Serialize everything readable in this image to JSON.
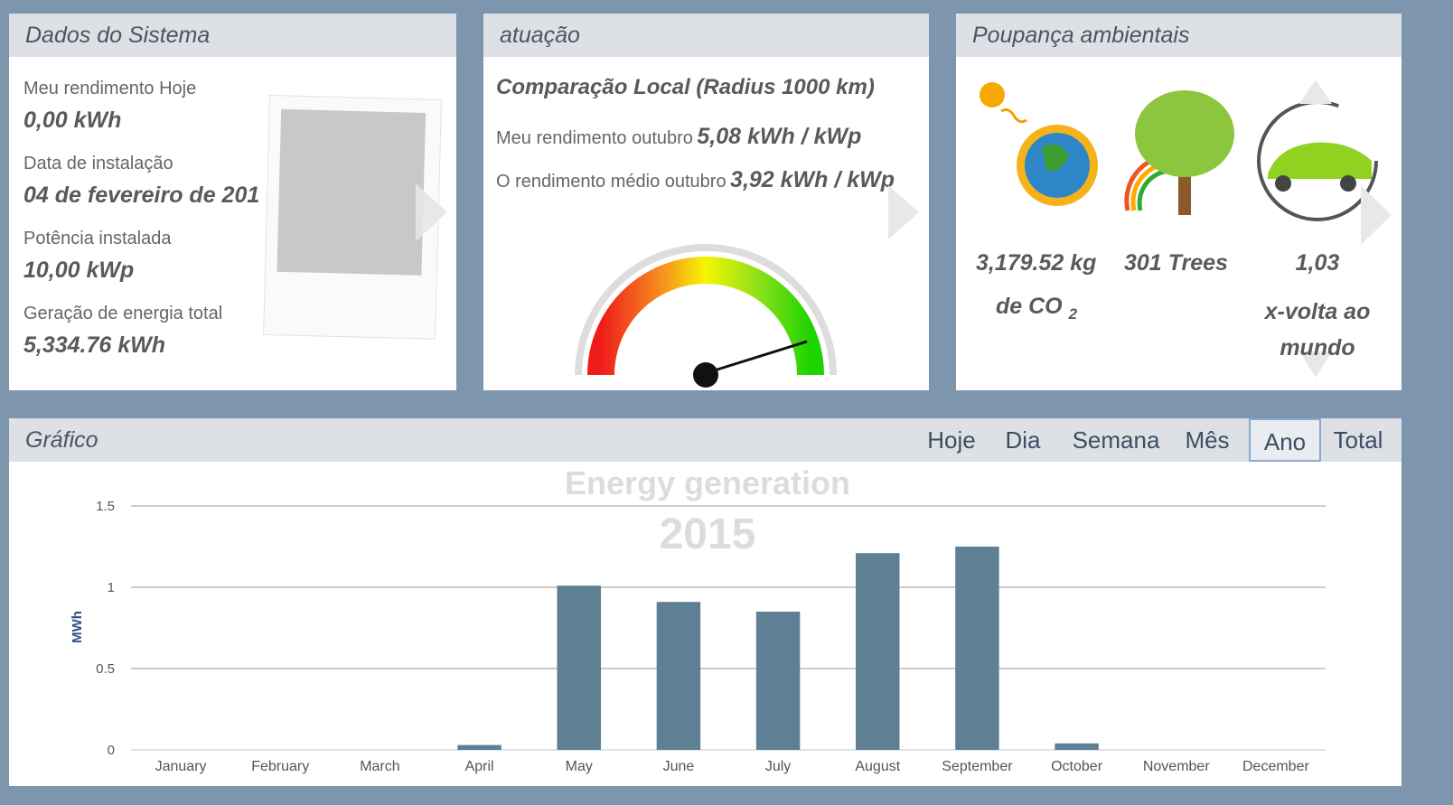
{
  "system": {
    "title": "Dados do Sistema",
    "items": [
      {
        "label": "Meu rendimento Hoje",
        "value": "0,00 kWh"
      },
      {
        "label": "Data de instalação",
        "value": "04 de fevereiro de 201"
      },
      {
        "label": "Potência instalada",
        "value": "10,00 kWp"
      },
      {
        "label": "Geração de energia total",
        "value": "5,334.76 kWh"
      }
    ]
  },
  "performance": {
    "title": "atuação",
    "subtitle": "Comparação Local (Radius 1000 km)",
    "rows": [
      {
        "label": "Meu rendimento outubro",
        "value": "5,08 kWh / kWp"
      },
      {
        "label": "O rendimento médio outubro",
        "value": "3,92 kWh / kWp"
      }
    ]
  },
  "savings": {
    "title": "Poupança ambientais",
    "items": [
      {
        "value": "3,179.52 kg",
        "unit": "de CO",
        "sub": "2"
      },
      {
        "value": "301 Trees"
      },
      {
        "value": "1,03",
        "unit": "x-volta ao mundo"
      }
    ]
  },
  "graph": {
    "title": "Gráfico",
    "tabs": [
      "Hoje",
      "Dia",
      "Semana",
      "Mês",
      "Ano",
      "Total"
    ],
    "active_tab": 4
  },
  "chart_data": {
    "type": "bar",
    "title": "Energy generation",
    "subtitle": "2015",
    "y_label": "MWh",
    "categories": [
      "January",
      "February",
      "March",
      "April",
      "May",
      "June",
      "July",
      "August",
      "September",
      "October",
      "November",
      "December"
    ],
    "values": [
      0,
      0,
      0,
      0.03,
      1.01,
      0.91,
      0.85,
      1.21,
      1.25,
      0.04,
      0,
      0
    ],
    "color": "#5f7f95",
    "ylim": [
      0,
      1.5
    ],
    "yticks": [
      0,
      0.5,
      1,
      1.5
    ],
    "grid": true
  }
}
